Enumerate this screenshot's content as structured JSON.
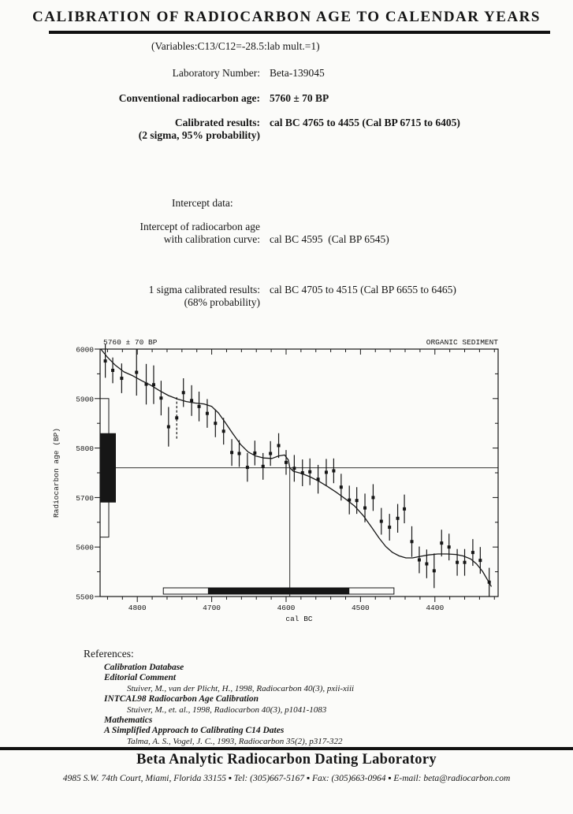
{
  "header": {
    "title": "CALIBRATION OF RADIOCARBON AGE TO CALENDAR YEARS",
    "variables_line": "(Variables:C13/C12=-28.5:lab mult.=1)"
  },
  "report": {
    "lab_number": {
      "label": "Laboratory Number:",
      "value": "Beta-139045"
    },
    "conventional_age": {
      "label": "Conventional radiocarbon age:",
      "value": "5760 ± 70 BP"
    },
    "calibrated_results": {
      "label": "Calibrated results:",
      "sublabel": "(2 sigma, 95% probability)",
      "value": "cal BC 4765 to 4455 (Cal BP 6715 to 6405)"
    },
    "intercept_heading": "Intercept data:",
    "intercept": {
      "label_line1": "Intercept of radiocarbon age",
      "label_line2": "with calibration curve:",
      "value": "cal BC 4595  (Cal BP 6545)"
    },
    "one_sigma": {
      "label_line1": "1 sigma calibrated results:",
      "label_line2": "(68% probability)",
      "value": "cal BC 4705 to 4515 (Cal BP 6655 to 6465)"
    }
  },
  "chart_data": {
    "type": "line",
    "title_annotation": "5760 ± 70 BP",
    "sample_annotation": "ORGANIC SEDIMENT",
    "xlabel": "cal BC",
    "ylabel": "Radiocarbon age (BP)",
    "xlim": [
      4850,
      4315
    ],
    "ylim": [
      5500,
      6000
    ],
    "x_ticks": [
      4800,
      4700,
      4600,
      4500,
      4400
    ],
    "y_ticks": [
      5500,
      5600,
      5700,
      5800,
      5900,
      6000
    ],
    "x_minor_step": 20,
    "y_minor_step": 50,
    "grid": false,
    "radiocarbon_age": 5760,
    "age_error": 70,
    "intercept_cal_bc": 4595,
    "one_sigma_age_range": [
      5690,
      5830
    ],
    "two_sigma_age_range": [
      5620,
      5900
    ],
    "one_sigma_range_cal_bc": [
      4705,
      4515
    ],
    "two_sigma_range_cal_bc": [
      4765,
      4455
    ],
    "calibration_curve": [
      [
        4849,
        6000
      ],
      [
        4841,
        5985
      ],
      [
        4830,
        5968
      ],
      [
        4818,
        5954
      ],
      [
        4806,
        5946
      ],
      [
        4794,
        5936
      ],
      [
        4782,
        5927
      ],
      [
        4770,
        5916
      ],
      [
        4758,
        5906
      ],
      [
        4746,
        5899
      ],
      [
        4734,
        5894
      ],
      [
        4722,
        5891
      ],
      [
        4710,
        5889
      ],
      [
        4700,
        5884
      ],
      [
        4691,
        5871
      ],
      [
        4682,
        5852
      ],
      [
        4672,
        5830
      ],
      [
        4661,
        5807
      ],
      [
        4651,
        5792
      ],
      [
        4641,
        5784
      ],
      [
        4630,
        5780
      ],
      [
        4619,
        5779
      ],
      [
        4610,
        5784
      ],
      [
        4602,
        5786
      ],
      [
        4597,
        5776
      ],
      [
        4595,
        5760
      ],
      [
        4590,
        5753
      ],
      [
        4580,
        5749
      ],
      [
        4568,
        5742
      ],
      [
        4556,
        5733
      ],
      [
        4544,
        5722
      ],
      [
        4532,
        5710
      ],
      [
        4520,
        5697
      ],
      [
        4508,
        5683
      ],
      [
        4496,
        5663
      ],
      [
        4485,
        5640
      ],
      [
        4475,
        5618
      ],
      [
        4466,
        5601
      ],
      [
        4457,
        5589
      ],
      [
        4448,
        5582
      ],
      [
        4439,
        5578
      ],
      [
        4430,
        5578
      ],
      [
        4420,
        5581
      ],
      [
        4408,
        5584
      ],
      [
        4396,
        5586
      ],
      [
        4384,
        5586
      ],
      [
        4372,
        5585
      ],
      [
        4362,
        5582
      ],
      [
        4352,
        5576
      ],
      [
        4344,
        5566
      ],
      [
        4336,
        5551
      ],
      [
        4329,
        5533
      ],
      [
        4324,
        5520
      ]
    ],
    "data_points": [
      {
        "cal_bc": 4843,
        "age": 5976,
        "err": 34
      },
      {
        "cal_bc": 4833,
        "age": 5957,
        "err": 26
      },
      {
        "cal_bc": 4821,
        "age": 5941,
        "err": 30
      },
      {
        "cal_bc": 4801,
        "age": 5953,
        "err": 47
      },
      {
        "cal_bc": 4788,
        "age": 5929,
        "err": 41
      },
      {
        "cal_bc": 4778,
        "age": 5928,
        "err": 39
      },
      {
        "cal_bc": 4768,
        "age": 5901,
        "err": 35
      },
      {
        "cal_bc": 4758,
        "age": 5843,
        "err": 40
      },
      {
        "cal_bc": 4747,
        "age": 5861,
        "err": 42,
        "dashed": true
      },
      {
        "cal_bc": 4738,
        "age": 5912,
        "err": 29
      },
      {
        "cal_bc": 4727,
        "age": 5896,
        "err": 31
      },
      {
        "cal_bc": 4717,
        "age": 5884,
        "err": 30
      },
      {
        "cal_bc": 4706,
        "age": 5870,
        "err": 29
      },
      {
        "cal_bc": 4695,
        "age": 5850,
        "err": 28
      },
      {
        "cal_bc": 4684,
        "age": 5834,
        "err": 27
      },
      {
        "cal_bc": 4673,
        "age": 5791,
        "err": 27
      },
      {
        "cal_bc": 4663,
        "age": 5789,
        "err": 27
      },
      {
        "cal_bc": 4652,
        "age": 5761,
        "err": 29
      },
      {
        "cal_bc": 4642,
        "age": 5790,
        "err": 25
      },
      {
        "cal_bc": 4631,
        "age": 5763,
        "err": 27
      },
      {
        "cal_bc": 4621,
        "age": 5789,
        "err": 25
      },
      {
        "cal_bc": 4610,
        "age": 5805,
        "err": 25
      },
      {
        "cal_bc": 4600,
        "age": 5771,
        "err": 25
      },
      {
        "cal_bc": 4589,
        "age": 5759,
        "err": 27
      },
      {
        "cal_bc": 4578,
        "age": 5750,
        "err": 27
      },
      {
        "cal_bc": 4568,
        "age": 5752,
        "err": 27
      },
      {
        "cal_bc": 4557,
        "age": 5737,
        "err": 29
      },
      {
        "cal_bc": 4546,
        "age": 5751,
        "err": 27
      },
      {
        "cal_bc": 4536,
        "age": 5754,
        "err": 25
      },
      {
        "cal_bc": 4526,
        "age": 5721,
        "err": 27
      },
      {
        "cal_bc": 4515,
        "age": 5695,
        "err": 29
      },
      {
        "cal_bc": 4505,
        "age": 5694,
        "err": 27
      },
      {
        "cal_bc": 4494,
        "age": 5679,
        "err": 29
      },
      {
        "cal_bc": 4483,
        "age": 5700,
        "err": 27
      },
      {
        "cal_bc": 4472,
        "age": 5652,
        "err": 27
      },
      {
        "cal_bc": 4461,
        "age": 5640,
        "err": 27
      },
      {
        "cal_bc": 4450,
        "age": 5658,
        "err": 29
      },
      {
        "cal_bc": 4441,
        "age": 5677,
        "err": 29
      },
      {
        "cal_bc": 4431,
        "age": 5611,
        "err": 31
      },
      {
        "cal_bc": 4421,
        "age": 5574,
        "err": 27
      },
      {
        "cal_bc": 4411,
        "age": 5566,
        "err": 29
      },
      {
        "cal_bc": 4401,
        "age": 5552,
        "err": 35
      },
      {
        "cal_bc": 4391,
        "age": 5608,
        "err": 27
      },
      {
        "cal_bc": 4381,
        "age": 5600,
        "err": 27
      },
      {
        "cal_bc": 4370,
        "age": 5569,
        "err": 27
      },
      {
        "cal_bc": 4360,
        "age": 5569,
        "err": 27
      },
      {
        "cal_bc": 4349,
        "age": 5589,
        "err": 27
      },
      {
        "cal_bc": 4339,
        "age": 5573,
        "err": 27
      },
      {
        "cal_bc": 4327,
        "age": 5529,
        "err": 29
      }
    ]
  },
  "references": {
    "heading": "References:",
    "entries": [
      {
        "title": "Calibration Database"
      },
      {
        "title": "Editorial Comment",
        "citation": "Stuiver, M., van der Plicht, H., 1998, Radiocarbon 40(3), pxii-xiii"
      },
      {
        "title": "INTCAL98 Radiocarbon Age Calibration",
        "citation": "Stuiver, M., et. al., 1998, Radiocarbon 40(3), p1041-1083"
      },
      {
        "title": "Mathematics"
      },
      {
        "title": "A Simplified Approach to Calibrating C14 Dates",
        "citation": "Talma, A. S., Vogel, J. C., 1993, Radiocarbon 35(2), p317-322"
      }
    ]
  },
  "footer": {
    "lab_name": "Beta Analytic Radiocarbon Dating Laboratory",
    "address_line": "4985 S.W. 74th Court, Miami, Florida 33155 ▪ Tel: (305)667-5167 ▪ Fax: (305)663-0964 ▪ E-mail: beta@radiocarbon.com"
  }
}
